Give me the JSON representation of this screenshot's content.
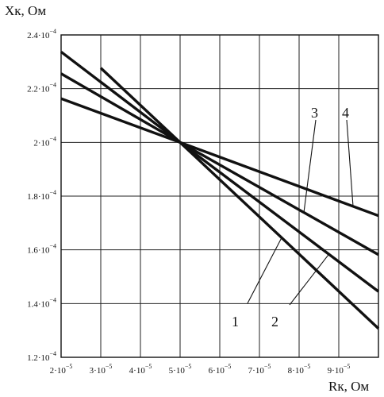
{
  "chart_data": {
    "type": "line",
    "xlabel": "Rк, Ом",
    "ylabel": "Xк, Ом",
    "xlim": [
      2e-05,
      0.0001
    ],
    "ylim": [
      0.00012,
      0.00024
    ],
    "grid": true,
    "x_ticks": [
      {
        "value": 2e-05,
        "mant": "2",
        "exp": "−5"
      },
      {
        "value": 3e-05,
        "mant": "3",
        "exp": "−5"
      },
      {
        "value": 4e-05,
        "mant": "4",
        "exp": "−5"
      },
      {
        "value": 5e-05,
        "mant": "5",
        "exp": "−5"
      },
      {
        "value": 6e-05,
        "mant": "6",
        "exp": "−5"
      },
      {
        "value": 7e-05,
        "mant": "7",
        "exp": "−5"
      },
      {
        "value": 8e-05,
        "mant": "8",
        "exp": "−5"
      },
      {
        "value": 9e-05,
        "mant": "9",
        "exp": "−5"
      }
    ],
    "y_ticks": [
      {
        "value": 0.00012,
        "mant": "1.2",
        "exp": "−4"
      },
      {
        "value": 0.00014,
        "mant": "1.4",
        "exp": "−4"
      },
      {
        "value": 0.00016,
        "mant": "1.6",
        "exp": "−4"
      },
      {
        "value": 0.00018,
        "mant": "1.8",
        "exp": "−4"
      },
      {
        "value": 0.0002,
        "mant": "2",
        "exp": "−4"
      },
      {
        "value": 0.00022,
        "mant": "2.2",
        "exp": "−4"
      },
      {
        "value": 0.00024,
        "mant": "2.4",
        "exp": "−4"
      }
    ],
    "series": [
      {
        "name": "1",
        "x": [
          3e-05,
          5e-05,
          0.0001
        ],
        "y": [
          0.0002277,
          0.0002,
          0.0001307
        ]
      },
      {
        "name": "2",
        "x": [
          2e-05,
          5e-05,
          0.0001
        ],
        "y": [
          0.0002337,
          0.0002,
          0.0001445
        ]
      },
      {
        "name": "3",
        "x": [
          2e-05,
          5e-05,
          0.0001
        ],
        "y": [
          0.0002256,
          0.0002,
          0.0001582
        ]
      },
      {
        "name": "4",
        "x": [
          2e-05,
          5e-05,
          0.0001
        ],
        "y": [
          0.0002163,
          0.0002,
          0.0001727
        ]
      }
    ]
  }
}
